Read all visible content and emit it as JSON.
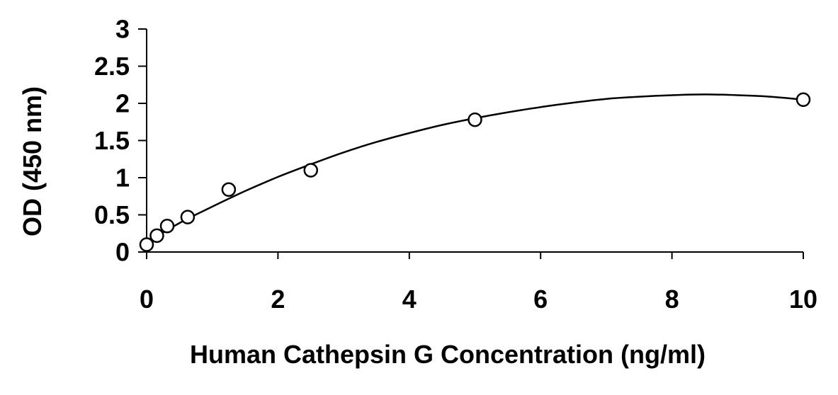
{
  "chart_data": {
    "type": "scatter",
    "xlabel": "Human Cathepsin G Concentration (ng/ml)",
    "ylabel": "OD (450 nm)",
    "xlim": [
      0,
      10
    ],
    "ylim": [
      0,
      3
    ],
    "x_ticks": [
      "0",
      "2",
      "4",
      "6",
      "8",
      "10"
    ],
    "y_ticks": [
      "0",
      "0.5",
      "1",
      "1.5",
      "2",
      "2.5",
      "3"
    ],
    "grid": false,
    "legend": "none",
    "series": [
      {
        "marker": "open-circle",
        "x": [
          0,
          0.156,
          0.313,
          0.625,
          1.25,
          2.5,
          5,
          10
        ],
        "y": [
          0.1,
          0.22,
          0.35,
          0.47,
          0.84,
          1.1,
          1.78,
          2.05
        ]
      }
    ],
    "fit_curve": {
      "kind": "smooth",
      "x": [
        0,
        0.5,
        1,
        1.5,
        2,
        2.5,
        3,
        3.5,
        4,
        4.5,
        5,
        5.5,
        6,
        6.5,
        7,
        7.5,
        8,
        8.5,
        9,
        9.5,
        10
      ],
      "y": [
        0.13,
        0.39,
        0.61,
        0.82,
        1.01,
        1.18,
        1.34,
        1.48,
        1.6,
        1.71,
        1.8,
        1.88,
        1.95,
        2.01,
        2.06,
        2.09,
        2.11,
        2.12,
        2.11,
        2.09,
        2.05
      ]
    },
    "colors": {
      "line": "#000000",
      "marker_stroke": "#000000",
      "marker_fill": "#ffffff"
    }
  }
}
